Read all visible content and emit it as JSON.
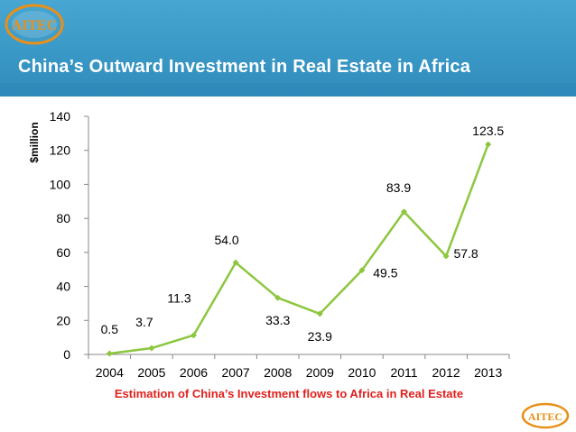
{
  "slide": {
    "title": "China’s Outward Investment in Real Estate in Africa",
    "caption": "Estimation of China’s Investment flows to Africa in Real Estate",
    "logo_text": "AITEC"
  },
  "colors": {
    "banner": "#3a98c6",
    "series_line": "#8dc63f",
    "caption": "#e0201c",
    "logo": "#e8901a"
  },
  "chart_data": {
    "type": "line",
    "title": "",
    "xlabel": "",
    "ylabel": "$million",
    "categories": [
      "2004",
      "2005",
      "2006",
      "2007",
      "2008",
      "2009",
      "2010",
      "2011",
      "2012",
      "2013"
    ],
    "series": [
      {
        "values": [
          0.5,
          3.7,
          11.3,
          54.0,
          33.3,
          23.9,
          49.5,
          83.9,
          57.8,
          123.5
        ]
      }
    ],
    "data_labels": [
      "0.5",
      "3.7",
      "11.3",
      "54.0",
      "33.3",
      "23.9",
      "49.5",
      "83.9",
      "57.8",
      "123.5"
    ],
    "ylim": [
      0,
      140
    ],
    "yticks": [
      0,
      20,
      40,
      60,
      80,
      100,
      120,
      140
    ],
    "grid": false,
    "legend": "none"
  }
}
